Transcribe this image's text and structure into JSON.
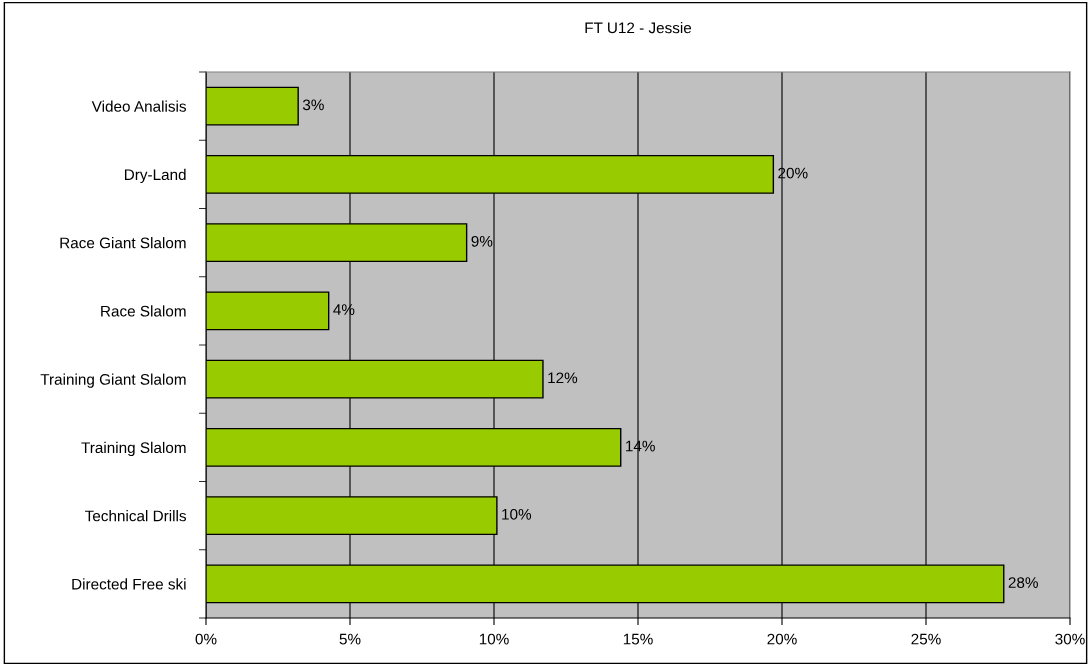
{
  "chart_data": {
    "type": "bar",
    "orientation": "horizontal",
    "title": "FT U12 - Jessie",
    "categories": [
      "Video Analisis",
      "Dry-Land",
      "Race Giant Slalom",
      "Race Slalom",
      "Training Giant Slalom",
      "Training Slalom",
      "Technical Drills",
      "Directed Free ski"
    ],
    "values": [
      3.2,
      19.7,
      9.05,
      4.26,
      11.7,
      14.4,
      10.1,
      27.7
    ],
    "value_labels": [
      "3%",
      "20%",
      "9%",
      "4%",
      "12%",
      "14%",
      "10%",
      "28%"
    ],
    "color": "#99cc00",
    "xlim": [
      0,
      30
    ],
    "xticks": [
      {
        "value": 0,
        "label": "0%"
      },
      {
        "value": 5,
        "label": "5%"
      },
      {
        "value": 10,
        "label": "10%"
      },
      {
        "value": 15,
        "label": "15%"
      },
      {
        "value": 20,
        "label": "20%"
      },
      {
        "value": 25,
        "label": "25%"
      },
      {
        "value": 30,
        "label": "30%"
      }
    ],
    "grid": "x",
    "legend": false
  }
}
